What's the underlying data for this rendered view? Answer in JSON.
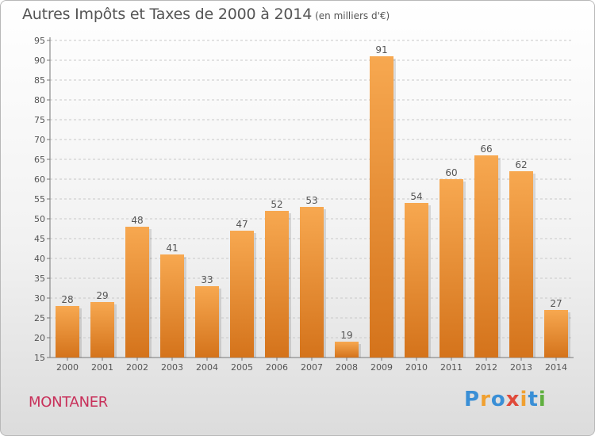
{
  "title": "Autres Impôts et Taxes de 2000 à 2014",
  "subtitle": "(en milliers d'€)",
  "town": "MONTANER",
  "logo": {
    "text": "Proxiti",
    "colors": [
      "#3a8fd6",
      "#f0a030",
      "#3a8fd6",
      "#e04a3a",
      "#f0a030",
      "#3a8fd6",
      "#60b040"
    ]
  },
  "colors": {
    "bar_top": "#f7a850",
    "bar_bottom": "#d4731b",
    "grid": "#c8c8c8",
    "text": "#555555"
  },
  "chart_data": {
    "type": "bar",
    "title": "Autres Impôts et Taxes de 2000 à 2014",
    "subtitle": "(en milliers d'€)",
    "categories": [
      "2000",
      "2001",
      "2002",
      "2003",
      "2004",
      "2005",
      "2006",
      "2007",
      "2008",
      "2009",
      "2010",
      "2011",
      "2012",
      "2013",
      "2014"
    ],
    "values": [
      28,
      29,
      48,
      41,
      33,
      47,
      52,
      53,
      19,
      91,
      54,
      60,
      66,
      62,
      27
    ],
    "ylim": [
      15,
      95
    ],
    "yticks": [
      15,
      20,
      25,
      30,
      35,
      40,
      45,
      50,
      55,
      60,
      65,
      70,
      75,
      80,
      85,
      90,
      95
    ],
    "grid": "dashed horizontal",
    "data_labels": true
  }
}
